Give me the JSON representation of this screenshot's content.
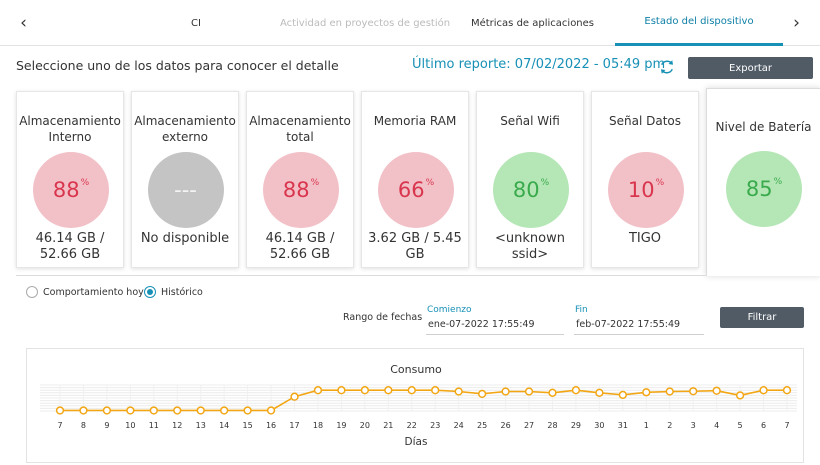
{
  "tabs": [
    {
      "label": "",
      "state": "normal"
    },
    {
      "label": "CI",
      "state": "normal"
    },
    {
      "label": "Actividad en proyectos de gestión",
      "state": "muted"
    },
    {
      "label": "Métricas de aplicaciones",
      "state": "normal"
    },
    {
      "label": "Estado del dispositivo",
      "state": "active"
    }
  ],
  "nav": {
    "prev_icon": "chevron-left-icon",
    "next_icon": "chevron-right-icon",
    "prev_glyph": "‹",
    "next_glyph": "›"
  },
  "header": {
    "subtitle": "Seleccione uno de los datos para conocer el detalle",
    "last_report": "Último reporte: 07/02/2022 - 05:49 pm",
    "export_label": "Exportar",
    "refresh_icon": "refresh-icon"
  },
  "colors": {
    "accent": "#1790b6",
    "red_fill": "#f2c1c8",
    "red_text": "#d9364e",
    "green_fill": "#b5e6b6",
    "green_text": "#3aab4c",
    "gray_fill": "#c4c4c4",
    "button_dark": "#505b66",
    "line_orange": "#f2a614"
  },
  "cards": [
    {
      "title": "Almacenamiento Interno",
      "value": "88",
      "unit": "%",
      "status": "red",
      "detail": "46.14 GB / 52.66 GB"
    },
    {
      "title": "Almacenamiento externo",
      "value": "---",
      "unit": "",
      "status": "gray",
      "detail": "No disponible"
    },
    {
      "title": "Almacenamiento total",
      "value": "88",
      "unit": "%",
      "status": "red",
      "detail": "46.14 GB / 52.66 GB"
    },
    {
      "title": "Memoria RAM",
      "value": "66",
      "unit": "%",
      "status": "red",
      "detail": "3.62 GB / 5.45 GB"
    },
    {
      "title": "Señal Wifi",
      "value": "80",
      "unit": "%",
      "status": "green",
      "detail": "<unknown ssid>"
    },
    {
      "title": "Señal Datos",
      "value": "10",
      "unit": "%",
      "status": "red",
      "detail": "TIGO"
    },
    {
      "title": "Nivel de Batería",
      "value": "85",
      "unit": "%",
      "status": "green",
      "detail": "",
      "selected": true
    }
  ],
  "mode": {
    "today_label": "Comportamiento hoy",
    "history_label": "Histórico",
    "selected": "history"
  },
  "filters": {
    "range_label": "Rango de fechas",
    "start_label": "Comienzo",
    "start_value": "ene-07-2022 17:55:49",
    "end_label": "Fin",
    "end_value": "feb-07-2022 17:55:49",
    "filter_label": "Filtrar"
  },
  "chart_data": {
    "type": "line",
    "title": "Consumo",
    "xlabel": "Días",
    "ylabel": "",
    "categories": [
      "7",
      "8",
      "9",
      "10",
      "11",
      "12",
      "13",
      "14",
      "15",
      "16",
      "17",
      "18",
      "19",
      "20",
      "21",
      "22",
      "23",
      "24",
      "25",
      "26",
      "27",
      "28",
      "29",
      "30",
      "31",
      "1",
      "2",
      "3",
      "4",
      "5",
      "6",
      "7"
    ],
    "series": [
      {
        "values": [
          2,
          2,
          2,
          2,
          2,
          2,
          2,
          2,
          2,
          2,
          55,
          80,
          80,
          80,
          80,
          80,
          80,
          75,
          66,
          75,
          75,
          70,
          80,
          70,
          62,
          72,
          75,
          76,
          78,
          60,
          80,
          80
        ]
      }
    ],
    "ylim": [
      0,
      100
    ],
    "grid": true,
    "legend": "none"
  }
}
